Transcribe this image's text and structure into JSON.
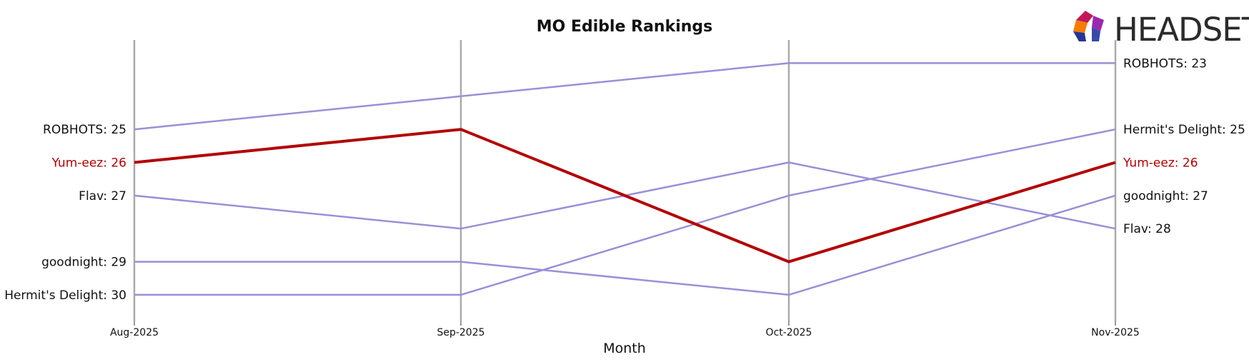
{
  "chart_data": {
    "type": "line",
    "title": "MO Edible Rankings",
    "xlabel": "Month",
    "ylabel": "",
    "x": [
      "Aug-2025",
      "Sep-2025",
      "Oct-2025",
      "Nov-2025"
    ],
    "y_inverted": true,
    "ylim": [
      22.3,
      30.8
    ],
    "grid": "vertical lines at each month",
    "highlight_color": "#b30000",
    "series_color": "#9b8fd8",
    "axis_line_color": "#aaaaaa",
    "series": [
      {
        "name": "ROBHOTS",
        "values": [
          25,
          24,
          23,
          23
        ],
        "highlight": false
      },
      {
        "name": "Yum-eez",
        "values": [
          26,
          25,
          29,
          26
        ],
        "highlight": true
      },
      {
        "name": "Flav",
        "values": [
          27,
          28,
          26,
          28
        ],
        "highlight": false
      },
      {
        "name": "goodnight",
        "values": [
          29,
          29,
          30,
          27
        ],
        "highlight": false
      },
      {
        "name": "Hermit's Delight",
        "values": [
          30,
          30,
          27,
          25
        ],
        "highlight": false
      }
    ],
    "left_labels": [
      {
        "text": "ROBHOTS: 25",
        "series": 0
      },
      {
        "text": "Yum-eez: 26",
        "series": 1
      },
      {
        "text": "Flav: 27",
        "series": 2
      },
      {
        "text": "goodnight: 29",
        "series": 3
      },
      {
        "text": "Hermit's Delight: 30",
        "series": 4
      }
    ],
    "right_labels": [
      {
        "text": "ROBHOTS: 23",
        "series": 0
      },
      {
        "text": "Hermit's Delight: 25",
        "series": 4
      },
      {
        "text": "Yum-eez: 26",
        "series": 1
      },
      {
        "text": "goodnight: 27",
        "series": 3
      },
      {
        "text": "Flav: 28",
        "series": 2
      }
    ]
  },
  "logo": {
    "text": "HEADSET",
    "icon": "headset-logo-icon"
  }
}
